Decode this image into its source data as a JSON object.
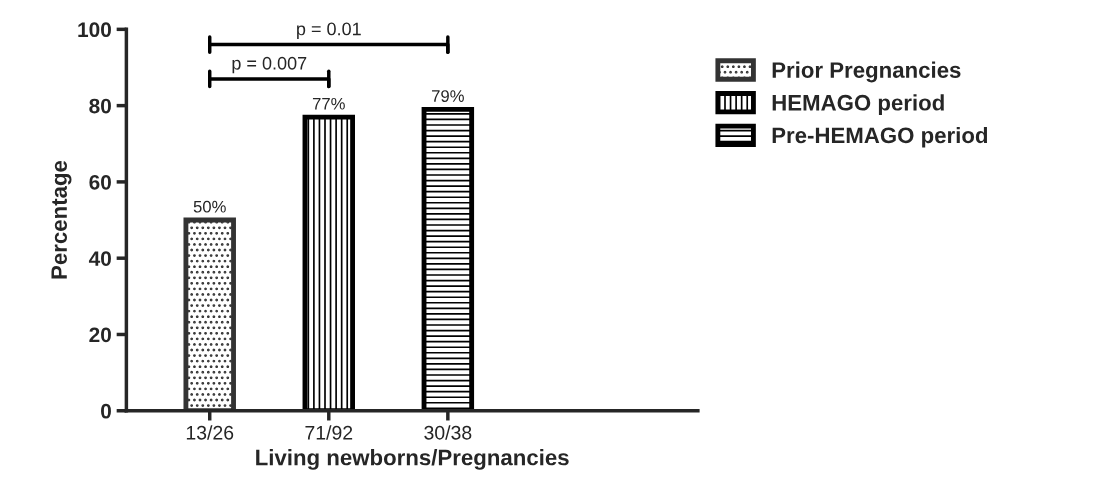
{
  "chart_data": {
    "type": "bar",
    "xlabel": "Living newborns/Pregnancies",
    "ylabel": "Percentage",
    "categories": [
      "13/26",
      "71/92",
      "30/38"
    ],
    "series": [
      {
        "name": "Prior Pregnancies",
        "color": "#333333",
        "values": [
          50,
          null,
          null
        ],
        "value_labels": [
          "50%",
          null,
          null
        ]
      },
      {
        "name": "HEMAGO period",
        "color": "#000000",
        "values": [
          null,
          77,
          null
        ],
        "value_labels": [
          null,
          "77%",
          null
        ]
      },
      {
        "name": "Pre-HEMAGO period",
        "color": "#000000",
        "values": [
          null,
          null,
          79
        ],
        "value_labels": [
          null,
          null,
          "79%"
        ]
      }
    ],
    "ylim": [
      0,
      100
    ],
    "yticks": [
      0,
      20,
      40,
      60,
      80,
      100
    ],
    "annotations": [
      "p = 0.007",
      "p = 0.01"
    ],
    "grid": false,
    "legend": "top right"
  }
}
